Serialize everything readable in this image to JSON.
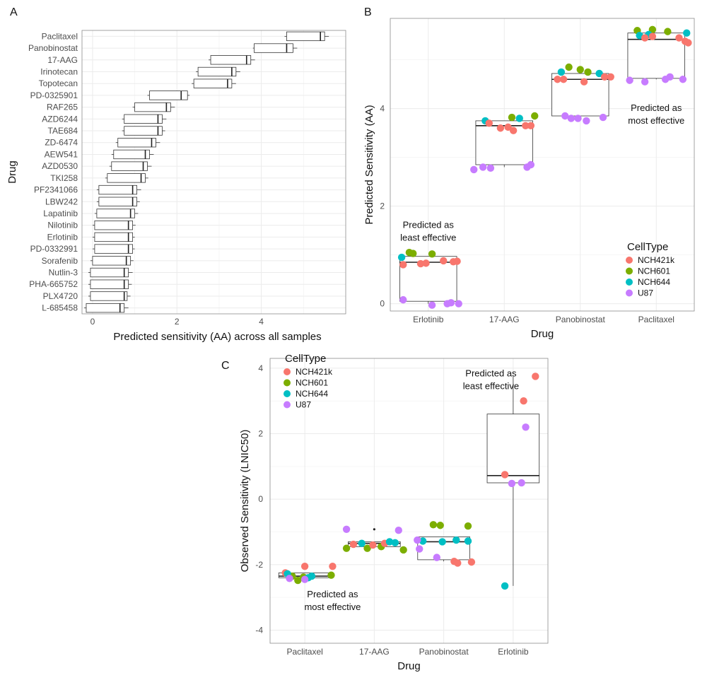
{
  "chart_data": [
    {
      "panel": "A",
      "type": "boxplot",
      "orientation": "horizontal",
      "xlabel": "Predicted sensitivity (AA) across all samples",
      "ylabel": "Drug",
      "xlim": [
        -0.25,
        6.0
      ],
      "xticks": [
        0,
        2,
        4
      ],
      "grid": true,
      "boxes": [
        {
          "drug": "Paclitaxel",
          "min": 4.55,
          "q1": 4.6,
          "median": 5.4,
          "q3": 5.5,
          "max": 5.6
        },
        {
          "drug": "Panobinostat",
          "min": 3.8,
          "q1": 3.83,
          "median": 4.6,
          "q3": 4.75,
          "max": 4.85
        },
        {
          "drug": "17-AAG",
          "min": 2.75,
          "q1": 2.8,
          "median": 3.65,
          "q3": 3.75,
          "max": 3.85
        },
        {
          "drug": "Irinotecan",
          "min": 2.45,
          "q1": 2.5,
          "median": 3.3,
          "q3": 3.4,
          "max": 3.5
        },
        {
          "drug": "Topotecan",
          "min": 2.35,
          "q1": 2.4,
          "median": 3.2,
          "q3": 3.3,
          "max": 3.4
        },
        {
          "drug": "PD-0325901",
          "min": 1.3,
          "q1": 1.35,
          "median": 2.1,
          "q3": 2.25,
          "max": 2.3
        },
        {
          "drug": "RAF265",
          "min": 0.95,
          "q1": 1.0,
          "median": 1.75,
          "q3": 1.85,
          "max": 1.95
        },
        {
          "drug": "AZD6244",
          "min": 0.7,
          "q1": 0.75,
          "median": 1.55,
          "q3": 1.65,
          "max": 1.75
        },
        {
          "drug": "TAE684",
          "min": 0.7,
          "q1": 0.75,
          "median": 1.55,
          "q3": 1.65,
          "max": 1.72
        },
        {
          "drug": "ZD-6474",
          "min": 0.55,
          "q1": 0.6,
          "median": 1.4,
          "q3": 1.5,
          "max": 1.6
        },
        {
          "drug": "AEW541",
          "min": 0.45,
          "q1": 0.5,
          "median": 1.25,
          "q3": 1.35,
          "max": 1.45
        },
        {
          "drug": "AZD0530",
          "min": 0.4,
          "q1": 0.45,
          "median": 1.2,
          "q3": 1.3,
          "max": 1.4
        },
        {
          "drug": "TKI258",
          "min": 0.3,
          "q1": 0.35,
          "median": 1.15,
          "q3": 1.25,
          "max": 1.32
        },
        {
          "drug": "PF2341066",
          "min": 0.1,
          "q1": 0.15,
          "median": 0.95,
          "q3": 1.05,
          "max": 1.15
        },
        {
          "drug": "LBW242",
          "min": 0.1,
          "q1": 0.15,
          "median": 0.95,
          "q3": 1.05,
          "max": 1.12
        },
        {
          "drug": "Lapatinib",
          "min": 0.05,
          "q1": 0.1,
          "median": 0.9,
          "q3": 1.0,
          "max": 1.08
        },
        {
          "drug": "Nilotinib",
          "min": 0.0,
          "q1": 0.05,
          "median": 0.85,
          "q3": 0.95,
          "max": 1.02
        },
        {
          "drug": "Erlotinib",
          "min": 0.0,
          "q1": 0.05,
          "median": 0.85,
          "q3": 0.95,
          "max": 1.0
        },
        {
          "drug": "PD-0332991",
          "min": 0.0,
          "q1": 0.05,
          "median": 0.85,
          "q3": 0.95,
          "max": 1.0
        },
        {
          "drug": "Sorafenib",
          "min": -0.05,
          "q1": 0.0,
          "median": 0.8,
          "q3": 0.9,
          "max": 0.97
        },
        {
          "drug": "Nutlin-3",
          "min": -0.1,
          "q1": -0.05,
          "median": 0.75,
          "q3": 0.85,
          "max": 0.95
        },
        {
          "drug": "PHA-665752",
          "min": -0.1,
          "q1": -0.05,
          "median": 0.75,
          "q3": 0.85,
          "max": 0.93
        },
        {
          "drug": "PLX4720",
          "min": -0.1,
          "q1": -0.05,
          "median": 0.75,
          "q3": 0.82,
          "max": 0.9
        },
        {
          "drug": "L-685458",
          "min": -0.2,
          "q1": -0.15,
          "median": 0.65,
          "q3": 0.75,
          "max": 0.85
        }
      ]
    },
    {
      "panel": "B",
      "type": "boxplot+scatter",
      "xlabel": "Drug",
      "ylabel": "Predicted Sensitivity (AA)",
      "ylim": [
        -0.15,
        5.85
      ],
      "yticks": [
        0,
        2,
        4
      ],
      "grid": true,
      "categories": [
        "Erlotinib",
        "17-AAG",
        "Panobinostat",
        "Paclitaxel"
      ],
      "boxes": [
        {
          "min": 0.0,
          "q1": 0.05,
          "median": 0.85,
          "q3": 0.97,
          "max": 0.97
        },
        {
          "min": 2.8,
          "q1": 2.85,
          "median": 3.65,
          "q3": 3.75,
          "max": 3.75
        },
        {
          "min": 3.8,
          "q1": 3.85,
          "median": 4.6,
          "q3": 4.72,
          "max": 4.72
        },
        {
          "min": 4.6,
          "q1": 4.62,
          "median": 5.42,
          "q3": 5.55,
          "max": 5.55
        }
      ],
      "points": [
        {
          "cat": 0,
          "jitter": -0.35,
          "y": 0.95,
          "cell": "NCH644"
        },
        {
          "cat": 0,
          "jitter": -0.25,
          "y": 1.05,
          "cell": "NCH601"
        },
        {
          "cat": 0,
          "jitter": -0.2,
          "y": 1.03,
          "cell": "NCH601"
        },
        {
          "cat": 0,
          "jitter": 0.05,
          "y": 1.02,
          "cell": "NCH601"
        },
        {
          "cat": 0,
          "jitter": -0.33,
          "y": 0.8,
          "cell": "NCH421k"
        },
        {
          "cat": 0,
          "jitter": -0.1,
          "y": 0.82,
          "cell": "NCH421k"
        },
        {
          "cat": 0,
          "jitter": -0.03,
          "y": 0.83,
          "cell": "NCH421k"
        },
        {
          "cat": 0,
          "jitter": 0.2,
          "y": 0.88,
          "cell": "NCH421k"
        },
        {
          "cat": 0,
          "jitter": 0.33,
          "y": 0.86,
          "cell": "NCH421k"
        },
        {
          "cat": 0,
          "jitter": 0.38,
          "y": 0.87,
          "cell": "NCH421k"
        },
        {
          "cat": 0,
          "jitter": -0.33,
          "y": 0.08,
          "cell": "U87"
        },
        {
          "cat": 0,
          "jitter": 0.05,
          "y": -0.03,
          "cell": "U87"
        },
        {
          "cat": 0,
          "jitter": 0.25,
          "y": 0.0,
          "cell": "U87"
        },
        {
          "cat": 0,
          "jitter": 0.3,
          "y": 0.02,
          "cell": "U87"
        },
        {
          "cat": 0,
          "jitter": 0.4,
          "y": 0.0,
          "cell": "U87"
        },
        {
          "cat": 1,
          "jitter": -0.25,
          "y": 3.75,
          "cell": "NCH644"
        },
        {
          "cat": 1,
          "jitter": 0.2,
          "y": 3.8,
          "cell": "NCH644"
        },
        {
          "cat": 1,
          "jitter": 0.1,
          "y": 3.82,
          "cell": "NCH601"
        },
        {
          "cat": 1,
          "jitter": 0.4,
          "y": 3.85,
          "cell": "NCH601"
        },
        {
          "cat": 1,
          "jitter": -0.2,
          "y": 3.7,
          "cell": "NCH421k"
        },
        {
          "cat": 1,
          "jitter": -0.05,
          "y": 3.6,
          "cell": "NCH421k"
        },
        {
          "cat": 1,
          "jitter": 0.05,
          "y": 3.62,
          "cell": "NCH421k"
        },
        {
          "cat": 1,
          "jitter": 0.12,
          "y": 3.55,
          "cell": "NCH421k"
        },
        {
          "cat": 1,
          "jitter": 0.28,
          "y": 3.65,
          "cell": "NCH421k"
        },
        {
          "cat": 1,
          "jitter": 0.35,
          "y": 3.65,
          "cell": "NCH421k"
        },
        {
          "cat": 1,
          "jitter": -0.4,
          "y": 2.75,
          "cell": "U87"
        },
        {
          "cat": 1,
          "jitter": -0.28,
          "y": 2.8,
          "cell": "U87"
        },
        {
          "cat": 1,
          "jitter": -0.18,
          "y": 2.78,
          "cell": "U87"
        },
        {
          "cat": 1,
          "jitter": 0.3,
          "y": 2.8,
          "cell": "U87"
        },
        {
          "cat": 1,
          "jitter": 0.35,
          "y": 2.85,
          "cell": "U87"
        },
        {
          "cat": 2,
          "jitter": -0.25,
          "y": 4.75,
          "cell": "NCH644"
        },
        {
          "cat": 2,
          "jitter": 0.25,
          "y": 4.72,
          "cell": "NCH644"
        },
        {
          "cat": 2,
          "jitter": -0.15,
          "y": 4.85,
          "cell": "NCH601"
        },
        {
          "cat": 2,
          "jitter": 0.0,
          "y": 4.8,
          "cell": "NCH601"
        },
        {
          "cat": 2,
          "jitter": 0.1,
          "y": 4.75,
          "cell": "NCH601"
        },
        {
          "cat": 2,
          "jitter": -0.3,
          "y": 4.6,
          "cell": "NCH421k"
        },
        {
          "cat": 2,
          "jitter": -0.22,
          "y": 4.6,
          "cell": "NCH421k"
        },
        {
          "cat": 2,
          "jitter": 0.05,
          "y": 4.55,
          "cell": "NCH421k"
        },
        {
          "cat": 2,
          "jitter": 0.32,
          "y": 4.65,
          "cell": "NCH421k"
        },
        {
          "cat": 2,
          "jitter": 0.4,
          "y": 4.65,
          "cell": "NCH421k"
        },
        {
          "cat": 2,
          "jitter": -0.2,
          "y": 3.85,
          "cell": "U87"
        },
        {
          "cat": 2,
          "jitter": -0.12,
          "y": 3.8,
          "cell": "U87"
        },
        {
          "cat": 2,
          "jitter": -0.03,
          "y": 3.8,
          "cell": "U87"
        },
        {
          "cat": 2,
          "jitter": 0.08,
          "y": 3.75,
          "cell": "U87"
        },
        {
          "cat": 2,
          "jitter": 0.3,
          "y": 3.82,
          "cell": "U87"
        },
        {
          "cat": 3,
          "jitter": -0.25,
          "y": 5.6,
          "cell": "NCH601"
        },
        {
          "cat": 3,
          "jitter": -0.05,
          "y": 5.62,
          "cell": "NCH601"
        },
        {
          "cat": 3,
          "jitter": 0.15,
          "y": 5.58,
          "cell": "NCH601"
        },
        {
          "cat": 3,
          "jitter": -0.22,
          "y": 5.5,
          "cell": "NCH644"
        },
        {
          "cat": 3,
          "jitter": -0.1,
          "y": 5.52,
          "cell": "NCH644"
        },
        {
          "cat": 3,
          "jitter": 0.4,
          "y": 5.55,
          "cell": "NCH644"
        },
        {
          "cat": 3,
          "jitter": -0.15,
          "y": 5.45,
          "cell": "NCH421k"
        },
        {
          "cat": 3,
          "jitter": -0.05,
          "y": 5.48,
          "cell": "NCH421k"
        },
        {
          "cat": 3,
          "jitter": 0.3,
          "y": 5.45,
          "cell": "NCH421k"
        },
        {
          "cat": 3,
          "jitter": 0.38,
          "y": 5.38,
          "cell": "NCH421k"
        },
        {
          "cat": 3,
          "jitter": 0.42,
          "y": 5.35,
          "cell": "NCH421k"
        },
        {
          "cat": 3,
          "jitter": -0.35,
          "y": 4.58,
          "cell": "U87"
        },
        {
          "cat": 3,
          "jitter": -0.15,
          "y": 4.55,
          "cell": "U87"
        },
        {
          "cat": 3,
          "jitter": 0.12,
          "y": 4.6,
          "cell": "U87"
        },
        {
          "cat": 3,
          "jitter": 0.18,
          "y": 4.65,
          "cell": "U87"
        },
        {
          "cat": 3,
          "jitter": 0.35,
          "y": 4.6,
          "cell": "U87"
        }
      ],
      "annotations": [
        {
          "lines": [
            "Predicted as",
            "least effective"
          ],
          "cat": 0,
          "y": 1.55
        },
        {
          "lines": [
            "Predicted as",
            "most effective"
          ],
          "cat": 3,
          "y": 3.95
        }
      ],
      "legend": {
        "title": "CellType",
        "position": "bottom-right"
      }
    },
    {
      "panel": "C",
      "type": "boxplot+scatter",
      "xlabel": "Drug",
      "ylabel": "Observed Sensitivity (LNIC50)",
      "ylim": [
        -4.4,
        4.3
      ],
      "yticks": [
        -4,
        -2,
        0,
        2,
        4
      ],
      "grid": true,
      "categories": [
        "Paclitaxel",
        "17-AAG",
        "Panobinostat",
        "Erlotinib"
      ],
      "boxes": [
        {
          "min": -2.42,
          "q1": -2.4,
          "median": -2.35,
          "q3": -2.25,
          "max": -2.25
        },
        {
          "min": -1.48,
          "q1": -1.45,
          "median": -1.35,
          "q3": -1.3,
          "max": -1.3
        },
        {
          "min": -1.9,
          "q1": -1.85,
          "median": -1.3,
          "q3": -1.15,
          "max": -1.15
        },
        {
          "min": -2.65,
          "q1": 0.5,
          "median": 0.72,
          "q3": 2.6,
          "max": 3.75
        }
      ],
      "outliers": [
        {
          "cat": 1,
          "y": -0.92
        }
      ],
      "points": [
        {
          "cat": 0,
          "jitter": -0.28,
          "y": -2.25,
          "cell": "NCH421k"
        },
        {
          "cat": 0,
          "jitter": 0.0,
          "y": -2.05,
          "cell": "NCH421k"
        },
        {
          "cat": 0,
          "jitter": 0.4,
          "y": -2.05,
          "cell": "NCH421k"
        },
        {
          "cat": 0,
          "jitter": -0.18,
          "y": -2.35,
          "cell": "NCH601"
        },
        {
          "cat": 0,
          "jitter": -0.1,
          "y": -2.48,
          "cell": "NCH601"
        },
        {
          "cat": 0,
          "jitter": -0.02,
          "y": -2.38,
          "cell": "NCH601"
        },
        {
          "cat": 0,
          "jitter": 0.38,
          "y": -2.32,
          "cell": "NCH601"
        },
        {
          "cat": 0,
          "jitter": -0.25,
          "y": -2.28,
          "cell": "NCH644"
        },
        {
          "cat": 0,
          "jitter": 0.05,
          "y": -2.4,
          "cell": "NCH644"
        },
        {
          "cat": 0,
          "jitter": 0.1,
          "y": -2.35,
          "cell": "NCH644"
        },
        {
          "cat": 0,
          "jitter": -0.22,
          "y": -2.42,
          "cell": "U87"
        },
        {
          "cat": 0,
          "jitter": 0.0,
          "y": -2.45,
          "cell": "U87"
        },
        {
          "cat": 1,
          "jitter": -0.4,
          "y": -1.5,
          "cell": "NCH601"
        },
        {
          "cat": 1,
          "jitter": -0.1,
          "y": -1.5,
          "cell": "NCH601"
        },
        {
          "cat": 1,
          "jitter": 0.1,
          "y": -1.45,
          "cell": "NCH601"
        },
        {
          "cat": 1,
          "jitter": 0.42,
          "y": -1.55,
          "cell": "NCH601"
        },
        {
          "cat": 1,
          "jitter": -0.3,
          "y": -1.38,
          "cell": "NCH421k"
        },
        {
          "cat": 1,
          "jitter": -0.02,
          "y": -1.4,
          "cell": "NCH421k"
        },
        {
          "cat": 1,
          "jitter": 0.15,
          "y": -1.35,
          "cell": "NCH421k"
        },
        {
          "cat": 1,
          "jitter": -0.18,
          "y": -1.35,
          "cell": "NCH644"
        },
        {
          "cat": 1,
          "jitter": 0.22,
          "y": -1.3,
          "cell": "NCH644"
        },
        {
          "cat": 1,
          "jitter": 0.3,
          "y": -1.33,
          "cell": "NCH644"
        },
        {
          "cat": 1,
          "jitter": -0.4,
          "y": -0.92,
          "cell": "U87"
        },
        {
          "cat": 1,
          "jitter": 0.35,
          "y": -0.95,
          "cell": "U87"
        },
        {
          "cat": 2,
          "jitter": -0.15,
          "y": -0.78,
          "cell": "NCH601"
        },
        {
          "cat": 2,
          "jitter": -0.05,
          "y": -0.8,
          "cell": "NCH601"
        },
        {
          "cat": 2,
          "jitter": 0.35,
          "y": -0.82,
          "cell": "NCH601"
        },
        {
          "cat": 2,
          "jitter": -0.3,
          "y": -1.28,
          "cell": "NCH644"
        },
        {
          "cat": 2,
          "jitter": -0.02,
          "y": -1.3,
          "cell": "NCH644"
        },
        {
          "cat": 2,
          "jitter": 0.18,
          "y": -1.25,
          "cell": "NCH644"
        },
        {
          "cat": 2,
          "jitter": 0.35,
          "y": -1.28,
          "cell": "NCH644"
        },
        {
          "cat": 2,
          "jitter": 0.15,
          "y": -1.9,
          "cell": "NCH421k"
        },
        {
          "cat": 2,
          "jitter": 0.2,
          "y": -1.95,
          "cell": "NCH421k"
        },
        {
          "cat": 2,
          "jitter": 0.4,
          "y": -1.92,
          "cell": "NCH421k"
        },
        {
          "cat": 2,
          "jitter": -0.38,
          "y": -1.25,
          "cell": "U87"
        },
        {
          "cat": 2,
          "jitter": -0.35,
          "y": -1.52,
          "cell": "U87"
        },
        {
          "cat": 2,
          "jitter": -0.1,
          "y": -1.78,
          "cell": "U87"
        },
        {
          "cat": 3,
          "jitter": 0.32,
          "y": 3.75,
          "cell": "NCH421k"
        },
        {
          "cat": 3,
          "jitter": 0.15,
          "y": 3.0,
          "cell": "NCH421k"
        },
        {
          "cat": 3,
          "jitter": -0.12,
          "y": 0.75,
          "cell": "NCH421k"
        },
        {
          "cat": 3,
          "jitter": 0.18,
          "y": 2.2,
          "cell": "U87"
        },
        {
          "cat": 3,
          "jitter": -0.02,
          "y": 0.48,
          "cell": "U87"
        },
        {
          "cat": 3,
          "jitter": 0.12,
          "y": 0.5,
          "cell": "U87"
        },
        {
          "cat": 3,
          "jitter": -0.12,
          "y": -2.65,
          "cell": "NCH644"
        }
      ],
      "annotations": [
        {
          "lines": [
            "Predicted as",
            "least effective"
          ],
          "cat": 2.68,
          "y": 3.75
        },
        {
          "lines": [
            "Predicted as",
            "most effective"
          ],
          "cat": 0.4,
          "y": -3.0
        }
      ],
      "legend": {
        "title": "CellType",
        "position": "top-left"
      }
    }
  ],
  "cell_types": [
    "NCH421k",
    "NCH601",
    "NCH644",
    "U87"
  ],
  "cell_colors": {
    "NCH421k": "#F8766D",
    "NCH601": "#7CAE00",
    "NCH644": "#00BFC4",
    "U87": "#C77CFF"
  },
  "legend_title": "CellType"
}
